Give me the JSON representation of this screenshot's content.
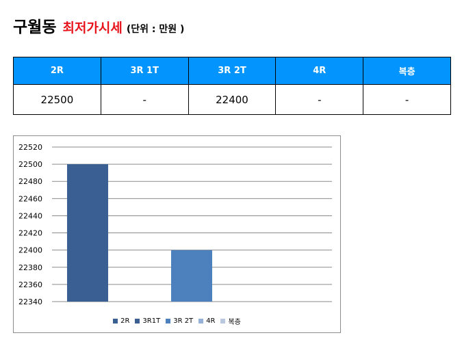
{
  "header": {
    "dong": "구월동",
    "price_label": "최저가시세",
    "unit": "(단위 : 만원 )"
  },
  "table": {
    "columns": [
      "2R",
      "3R 1T",
      "3R 2T",
      "4R",
      "복층"
    ],
    "values": [
      "22500",
      "-",
      "22400",
      "-",
      "-"
    ]
  },
  "chart_data": {
    "type": "bar",
    "categories": [
      "2R",
      "3R1T",
      "3R 2T",
      "4R",
      "복층"
    ],
    "series": [
      {
        "name": "2R",
        "values": [
          22500,
          null,
          null,
          null,
          null
        ],
        "color": "#3a6093"
      },
      {
        "name": "3R1T",
        "values": [
          null,
          null,
          null,
          null,
          null
        ],
        "color": "#3b5f93"
      },
      {
        "name": "3R 2T",
        "values": [
          null,
          null,
          22400,
          null,
          null
        ],
        "color": "#4d81bd"
      },
      {
        "name": "4R",
        "values": [
          null,
          null,
          null,
          null,
          null
        ],
        "color": "#95b1d8"
      },
      {
        "name": "복층",
        "values": [
          null,
          null,
          null,
          null,
          null
        ],
        "color": "#bac9e0"
      }
    ],
    "ylim": [
      22340,
      22520
    ],
    "yticks": [
      22520,
      22500,
      22480,
      22460,
      22440,
      22420,
      22400,
      22380,
      22360,
      22340
    ],
    "grid": true,
    "legend_position": "bottom",
    "title": "",
    "xlabel": "",
    "ylabel": ""
  }
}
